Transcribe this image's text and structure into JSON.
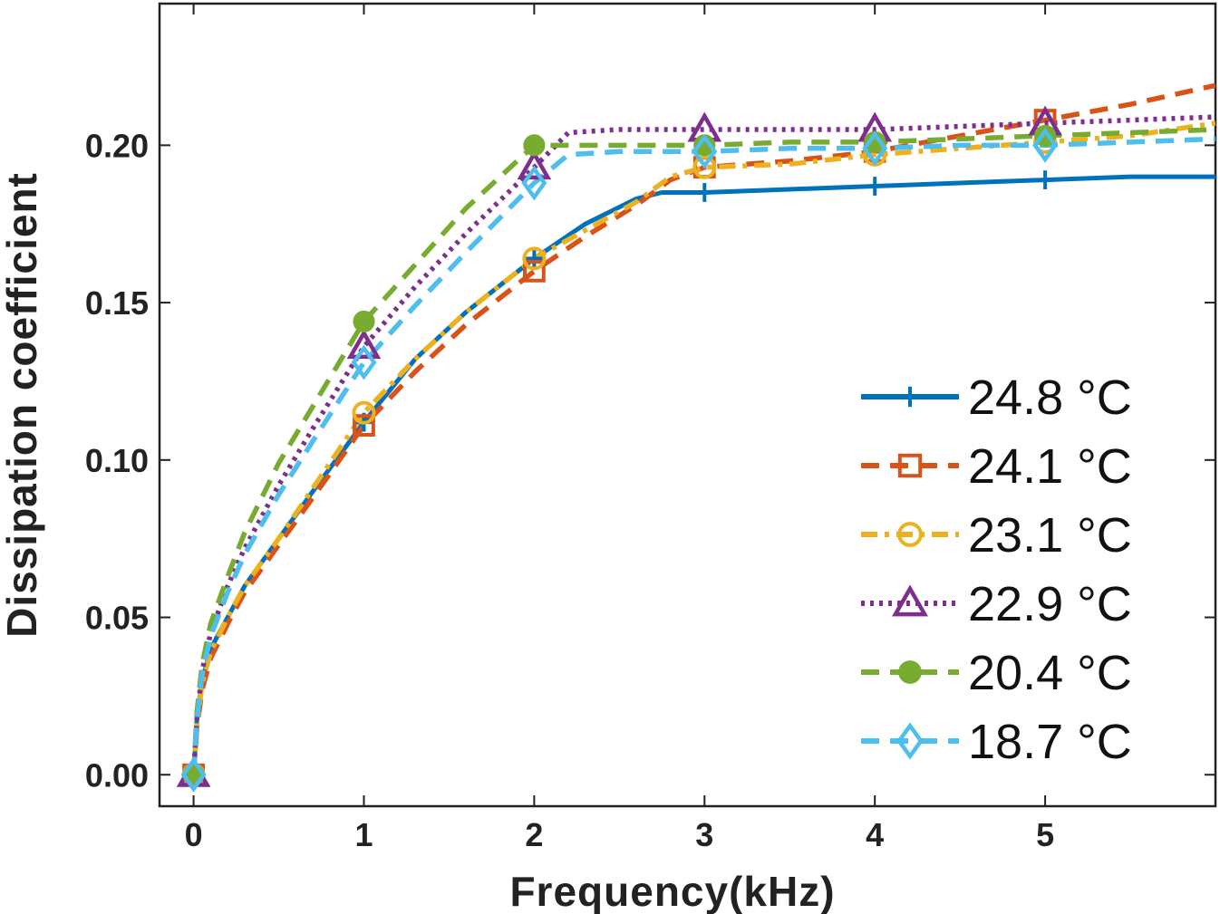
{
  "chart_data": {
    "type": "line",
    "xlabel": "Frequency(kHz)",
    "ylabel": "Dissipation coefficient",
    "xlim": [
      -0.2,
      6.0
    ],
    "ylim": [
      -0.01,
      0.245
    ],
    "xticks": [
      "0",
      "1",
      "2",
      "3",
      "4",
      "5"
    ],
    "yticks": [
      "0.00",
      "0.05",
      "0.10",
      "0.15",
      "0.20"
    ],
    "grid": false,
    "legend_position": "bottom-right",
    "series": [
      {
        "name": "24.8 °C",
        "color": "#0072BD",
        "dash": "solid",
        "marker": "plus",
        "marker_x": [
          0,
          1,
          2,
          3,
          4,
          5
        ],
        "x": [
          0,
          0.02,
          0.05,
          0.1,
          0.2,
          0.3,
          0.5,
          0.7,
          1.0,
          1.3,
          1.6,
          2.0,
          2.3,
          2.6,
          2.75,
          3.0,
          3.5,
          4.0,
          4.5,
          5.0,
          5.5,
          6.0
        ],
        "y": [
          0.0,
          0.018,
          0.03,
          0.04,
          0.05,
          0.06,
          0.075,
          0.09,
          0.112,
          0.132,
          0.147,
          0.164,
          0.175,
          0.183,
          0.185,
          0.185,
          0.186,
          0.187,
          0.188,
          0.189,
          0.19,
          0.19
        ]
      },
      {
        "name": "24.1 °C",
        "color": "#D95319",
        "dash": "dashed",
        "marker": "square",
        "marker_x": [
          0,
          1,
          2,
          3,
          4,
          5
        ],
        "x": [
          0,
          0.02,
          0.05,
          0.1,
          0.2,
          0.3,
          0.5,
          0.7,
          1.0,
          1.3,
          1.6,
          2.0,
          2.3,
          2.6,
          2.8,
          3.0,
          3.5,
          4.0,
          4.5,
          5.0,
          5.5,
          6.0
        ],
        "y": [
          0.0,
          0.015,
          0.027,
          0.037,
          0.048,
          0.058,
          0.073,
          0.088,
          0.111,
          0.128,
          0.143,
          0.16,
          0.171,
          0.181,
          0.189,
          0.193,
          0.195,
          0.198,
          0.203,
          0.208,
          0.213,
          0.219
        ]
      },
      {
        "name": "23.1 °C",
        "color": "#EDB120",
        "dash": "dashdot",
        "marker": "circle-open",
        "marker_x": [
          0,
          1,
          2,
          3,
          4,
          5
        ],
        "x": [
          0,
          0.02,
          0.05,
          0.1,
          0.2,
          0.3,
          0.5,
          0.7,
          1.0,
          1.3,
          1.6,
          2.0,
          2.3,
          2.6,
          2.8,
          3.0,
          3.5,
          4.0,
          4.5,
          5.0,
          5.5,
          6.0
        ],
        "y": [
          0.0,
          0.016,
          0.029,
          0.039,
          0.05,
          0.06,
          0.075,
          0.091,
          0.115,
          0.132,
          0.147,
          0.164,
          0.173,
          0.182,
          0.19,
          0.193,
          0.194,
          0.197,
          0.199,
          0.201,
          0.203,
          0.207
        ]
      },
      {
        "name": "22.9 °C",
        "color": "#7E2F8E",
        "dash": "dotted",
        "marker": "triangle",
        "marker_x": [
          0,
          1,
          2,
          3,
          4,
          5
        ],
        "x": [
          0,
          0.02,
          0.05,
          0.1,
          0.2,
          0.3,
          0.5,
          0.7,
          1.0,
          1.3,
          1.6,
          2.0,
          2.2,
          2.5,
          3.0,
          3.5,
          4.0,
          4.5,
          5.0,
          5.5,
          6.0
        ],
        "y": [
          0.0,
          0.018,
          0.033,
          0.045,
          0.06,
          0.072,
          0.092,
          0.11,
          0.136,
          0.155,
          0.172,
          0.193,
          0.204,
          0.205,
          0.205,
          0.205,
          0.205,
          0.206,
          0.207,
          0.208,
          0.209
        ]
      },
      {
        "name": "20.4 °C",
        "color": "#77AC30",
        "dash": "dashed",
        "marker": "circle",
        "marker_x": [
          0,
          1,
          2,
          3,
          4,
          5
        ],
        "x": [
          0,
          0.02,
          0.05,
          0.1,
          0.2,
          0.3,
          0.5,
          0.7,
          1.0,
          1.3,
          1.6,
          2.0,
          2.5,
          3.0,
          3.5,
          4.0,
          4.5,
          5.0,
          5.5,
          6.0
        ],
        "y": [
          0.0,
          0.02,
          0.035,
          0.048,
          0.063,
          0.077,
          0.099,
          0.117,
          0.144,
          0.162,
          0.18,
          0.2,
          0.2,
          0.2,
          0.201,
          0.201,
          0.202,
          0.203,
          0.204,
          0.205
        ]
      },
      {
        "name": "18.7 °C",
        "color": "#4DBEEE",
        "dash": "dashed",
        "marker": "diamond",
        "marker_x": [
          0,
          1,
          2,
          3,
          4,
          5
        ],
        "x": [
          0,
          0.02,
          0.05,
          0.1,
          0.2,
          0.3,
          0.5,
          0.7,
          1.0,
          1.3,
          1.6,
          2.0,
          2.2,
          2.5,
          3.0,
          3.5,
          4.0,
          4.5,
          5.0,
          5.5,
          6.0
        ],
        "y": [
          0.0,
          0.017,
          0.032,
          0.044,
          0.058,
          0.07,
          0.089,
          0.106,
          0.131,
          0.149,
          0.166,
          0.188,
          0.197,
          0.198,
          0.198,
          0.199,
          0.199,
          0.2,
          0.2,
          0.201,
          0.202
        ]
      }
    ]
  }
}
